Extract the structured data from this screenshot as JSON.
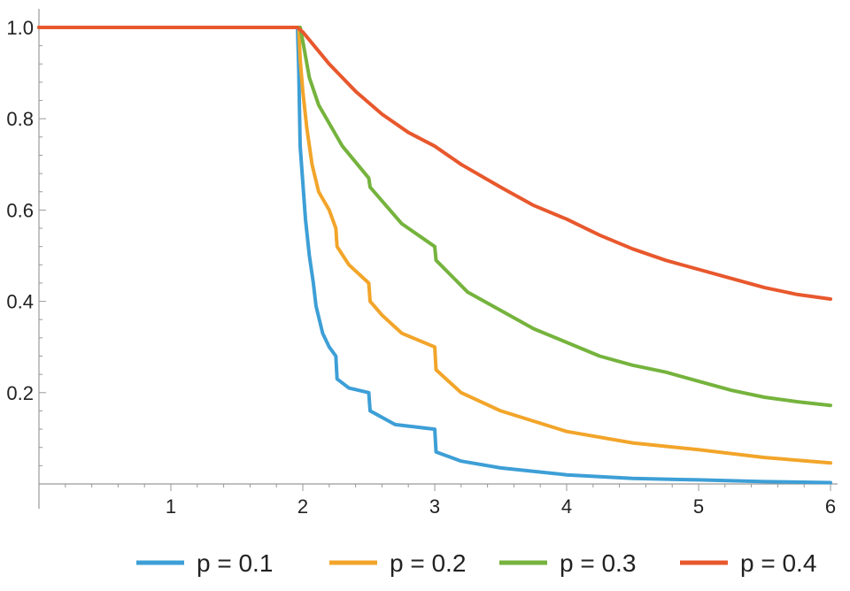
{
  "chart_data": {
    "type": "line",
    "title": "",
    "xlabel": "",
    "ylabel": "",
    "xlim": [
      0,
      6
    ],
    "ylim": [
      0,
      1
    ],
    "xticks": [
      1,
      2,
      3,
      4,
      5,
      6
    ],
    "yticks": [
      0.2,
      0.4,
      0.6,
      0.8,
      1.0
    ],
    "ytick_labels": [
      "0.2",
      "0.4",
      "0.6",
      "0.8",
      "1.0"
    ],
    "grid": false,
    "legend_position": "bottom",
    "series": [
      {
        "name": "p = 0.1",
        "color": "#3d9fd6",
        "points": [
          [
            0,
            1
          ],
          [
            1.96,
            1
          ],
          [
            1.97,
            0.9
          ],
          [
            1.98,
            0.74
          ],
          [
            2.0,
            0.66
          ],
          [
            2.02,
            0.58
          ],
          [
            2.05,
            0.5
          ],
          [
            2.08,
            0.44
          ],
          [
            2.1,
            0.39
          ],
          [
            2.15,
            0.33
          ],
          [
            2.2,
            0.3
          ],
          [
            2.25,
            0.28
          ],
          [
            2.26,
            0.23
          ],
          [
            2.35,
            0.21
          ],
          [
            2.5,
            0.2
          ],
          [
            2.51,
            0.16
          ],
          [
            2.7,
            0.13
          ],
          [
            3.0,
            0.12
          ],
          [
            3.01,
            0.07
          ],
          [
            3.2,
            0.05
          ],
          [
            3.5,
            0.035
          ],
          [
            4.0,
            0.02
          ],
          [
            4.5,
            0.012
          ],
          [
            5.0,
            0.009
          ],
          [
            5.5,
            0.005
          ],
          [
            6.0,
            0.003
          ]
        ]
      },
      {
        "name": "p = 0.2",
        "color": "#f2a52a",
        "points": [
          [
            0,
            1
          ],
          [
            1.97,
            1
          ],
          [
            1.98,
            0.93
          ],
          [
            2.0,
            0.86
          ],
          [
            2.03,
            0.78
          ],
          [
            2.07,
            0.7
          ],
          [
            2.12,
            0.64
          ],
          [
            2.2,
            0.6
          ],
          [
            2.25,
            0.56
          ],
          [
            2.26,
            0.52
          ],
          [
            2.35,
            0.48
          ],
          [
            2.5,
            0.44
          ],
          [
            2.51,
            0.4
          ],
          [
            2.6,
            0.37
          ],
          [
            2.75,
            0.33
          ],
          [
            3.0,
            0.3
          ],
          [
            3.01,
            0.25
          ],
          [
            3.2,
            0.2
          ],
          [
            3.5,
            0.16
          ],
          [
            4.0,
            0.115
          ],
          [
            4.5,
            0.09
          ],
          [
            5.0,
            0.075
          ],
          [
            5.5,
            0.058
          ],
          [
            6.0,
            0.046
          ]
        ]
      },
      {
        "name": "p = 0.3",
        "color": "#75b33d",
        "points": [
          [
            0,
            1
          ],
          [
            1.98,
            1
          ],
          [
            2.0,
            0.97
          ],
          [
            2.05,
            0.89
          ],
          [
            2.12,
            0.83
          ],
          [
            2.2,
            0.79
          ],
          [
            2.3,
            0.74
          ],
          [
            2.5,
            0.67
          ],
          [
            2.51,
            0.65
          ],
          [
            2.75,
            0.57
          ],
          [
            3.0,
            0.52
          ],
          [
            3.01,
            0.49
          ],
          [
            3.25,
            0.42
          ],
          [
            3.5,
            0.38
          ],
          [
            3.75,
            0.34
          ],
          [
            4.0,
            0.31
          ],
          [
            4.25,
            0.28
          ],
          [
            4.5,
            0.26
          ],
          [
            4.75,
            0.245
          ],
          [
            5.0,
            0.225
          ],
          [
            5.25,
            0.205
          ],
          [
            5.5,
            0.19
          ],
          [
            5.75,
            0.18
          ],
          [
            6.0,
            0.172
          ]
        ]
      },
      {
        "name": "p = 0.4",
        "color": "#e8582d",
        "points": [
          [
            0,
            1
          ],
          [
            1.96,
            1
          ],
          [
            2.0,
            0.99
          ],
          [
            2.2,
            0.92
          ],
          [
            2.4,
            0.86
          ],
          [
            2.6,
            0.81
          ],
          [
            2.8,
            0.77
          ],
          [
            3.0,
            0.74
          ],
          [
            3.2,
            0.7
          ],
          [
            3.5,
            0.65
          ],
          [
            3.75,
            0.61
          ],
          [
            4.0,
            0.58
          ],
          [
            4.25,
            0.545
          ],
          [
            4.5,
            0.515
          ],
          [
            4.75,
            0.49
          ],
          [
            5.0,
            0.47
          ],
          [
            5.25,
            0.45
          ],
          [
            5.5,
            0.43
          ],
          [
            5.75,
            0.415
          ],
          [
            6.0,
            0.405
          ]
        ]
      }
    ]
  }
}
